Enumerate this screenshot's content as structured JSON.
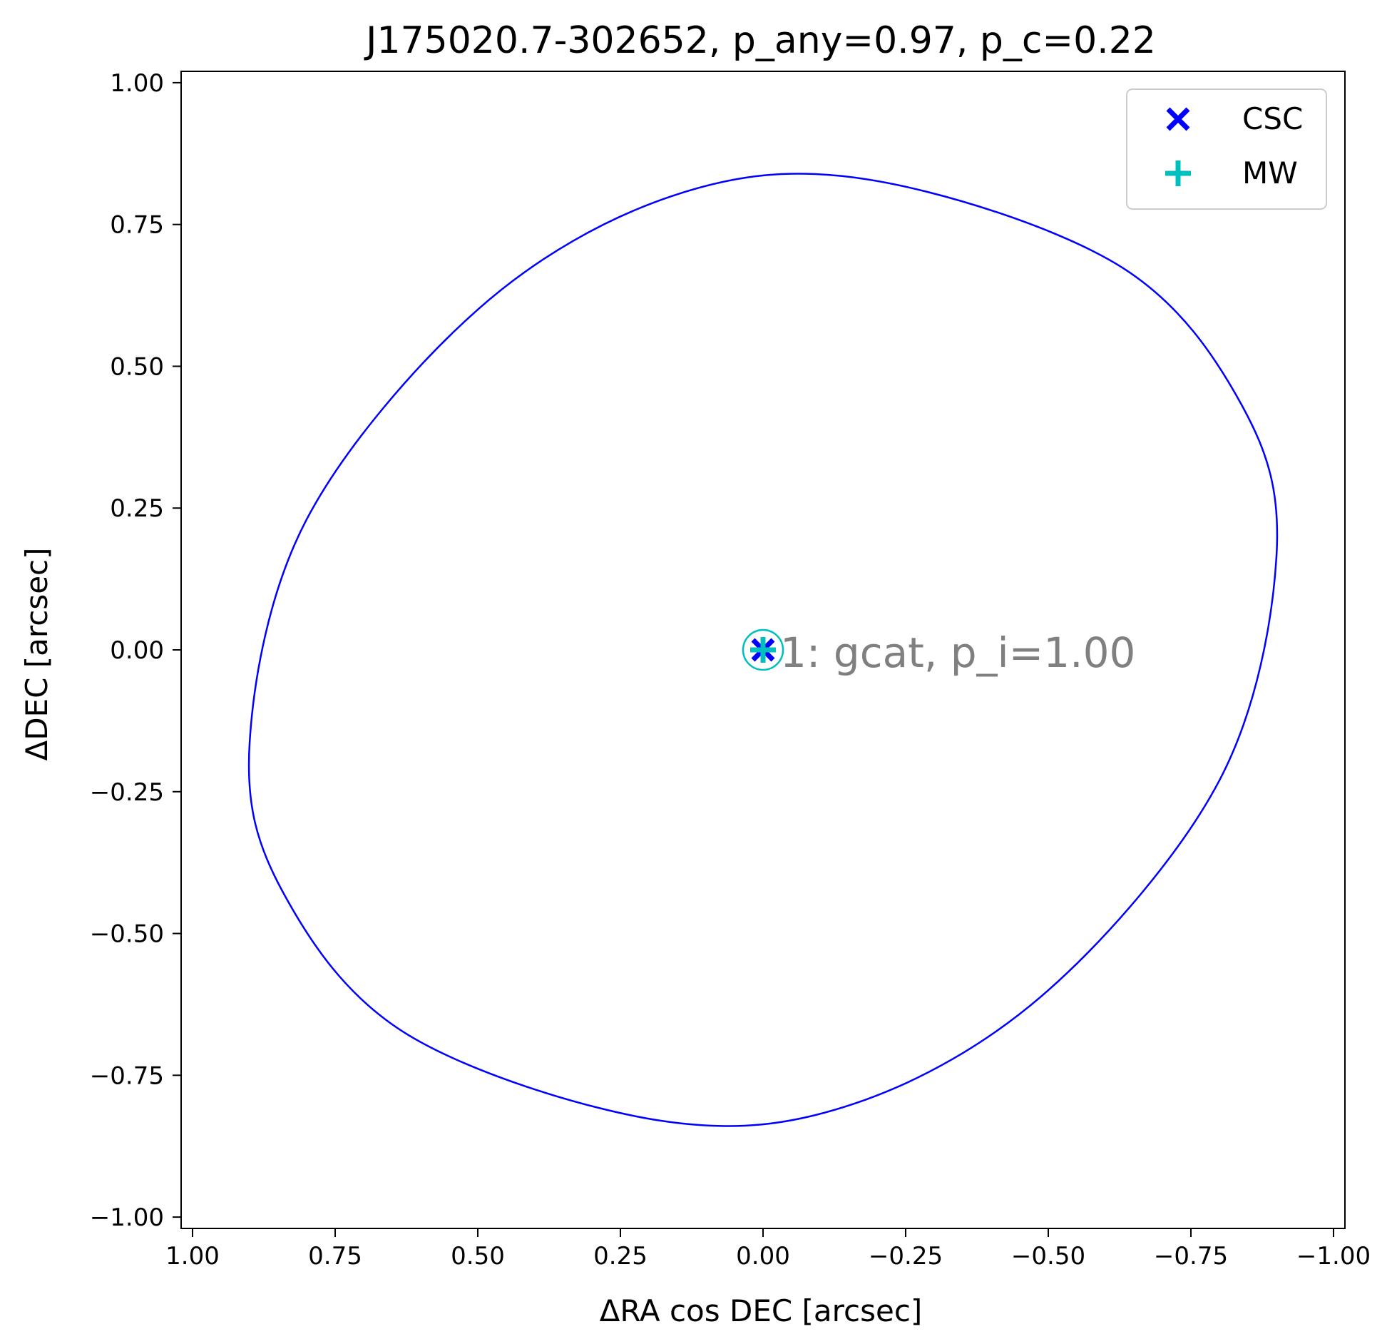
{
  "chart_data": {
    "type": "scatter",
    "title": "J175020.7-302652, p_any=0.97, p_c=0.22",
    "xlabel": "ΔRA cos DEC [arcsec]",
    "ylabel": "ΔDEC [arcsec]",
    "xlim": [
      1.02,
      -1.02
    ],
    "ylim": [
      -1.02,
      1.02
    ],
    "x_inverted": true,
    "grid": false,
    "xticks": [
      1.0,
      0.75,
      0.5,
      0.25,
      0.0,
      -0.25,
      -0.5,
      -0.75,
      -1.0
    ],
    "xtick_labels": [
      "1.00",
      "0.75",
      "0.50",
      "0.25",
      "0.00",
      "−0.25",
      "−0.50",
      "−0.75",
      "−1.00"
    ],
    "yticks": [
      1.0,
      0.75,
      0.5,
      0.25,
      0.0,
      -0.25,
      -0.5,
      -0.75,
      -1.0
    ],
    "ytick_labels": [
      "1.00",
      "0.75",
      "0.50",
      "0.25",
      "0.00",
      "−0.25",
      "−0.50",
      "−0.75",
      "−1.00"
    ],
    "legend": {
      "placement": "top-right",
      "entries": [
        {
          "label": "CSC",
          "marker": "x",
          "color": "#0000ff"
        },
        {
          "label": "MW",
          "marker": "+",
          "color": "#00bfbf"
        }
      ]
    },
    "series": [
      {
        "name": "CSC",
        "marker": "x",
        "color": "#0000ff",
        "points": [
          {
            "x": 0.0,
            "y": 0.0
          }
        ]
      },
      {
        "name": "MW",
        "marker": "+",
        "color": "#00bfbf",
        "points": [
          {
            "x": 0.0,
            "y": 0.0
          }
        ]
      }
    ],
    "error_ellipse": {
      "color": "#0000ff",
      "center": [
        0.0,
        0.0
      ],
      "points": [
        [
          -0.9,
          0.165
        ],
        [
          -0.84,
          0.43
        ],
        [
          -0.62,
          0.68
        ],
        [
          -0.18,
          0.83
        ],
        [
          0.16,
          0.8
        ],
        [
          0.5,
          0.6
        ],
        [
          0.8,
          0.23
        ],
        [
          0.9,
          -0.165
        ],
        [
          0.84,
          -0.43
        ],
        [
          0.62,
          -0.68
        ],
        [
          0.18,
          -0.83
        ],
        [
          -0.16,
          -0.8
        ],
        [
          -0.5,
          -0.6
        ],
        [
          -0.8,
          -0.23
        ]
      ]
    },
    "match_circle": {
      "center": [
        0.0,
        0.0
      ],
      "color": "#00bfbf"
    },
    "annotations": [
      {
        "text": "1: gcat, p_i=1.00",
        "x": -0.03,
        "y": -0.03,
        "color": "#808080"
      }
    ]
  }
}
